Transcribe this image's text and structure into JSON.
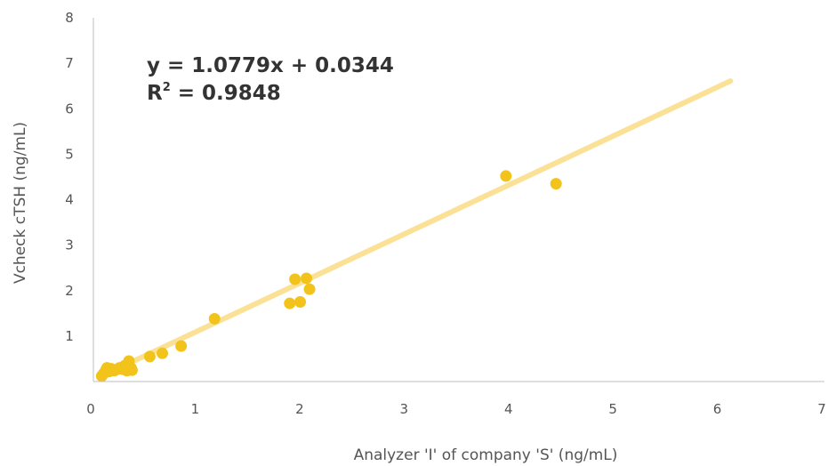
{
  "chart_data": {
    "type": "scatter",
    "xlabel": "Analyzer 'I' of company 'S' (ng/mL)",
    "ylabel": "Vcheck cTSH (ng/mL)",
    "xlim": [
      0,
      7
    ],
    "ylim": [
      0,
      8
    ],
    "x_ticks": [
      "0",
      "1",
      "2",
      "3",
      "4",
      "5",
      "6",
      "7"
    ],
    "y_ticks": [
      "1",
      "2",
      "3",
      "4",
      "5",
      "6",
      "7",
      "8"
    ],
    "grid": false,
    "colors": {
      "points": "#f2c41b",
      "trendline": "#fbe196",
      "axis": "#bfbfbf"
    },
    "series": [
      {
        "points": [
          [
            0.08,
            0.12
          ],
          [
            0.1,
            0.18
          ],
          [
            0.12,
            0.25
          ],
          [
            0.13,
            0.3
          ],
          [
            0.15,
            0.22
          ],
          [
            0.17,
            0.28
          ],
          [
            0.2,
            0.24
          ],
          [
            0.22,
            0.26
          ],
          [
            0.25,
            0.3
          ],
          [
            0.28,
            0.27
          ],
          [
            0.3,
            0.35
          ],
          [
            0.32,
            0.24
          ],
          [
            0.34,
            0.45
          ],
          [
            0.36,
            0.3
          ],
          [
            0.37,
            0.25
          ],
          [
            0.54,
            0.55
          ],
          [
            0.66,
            0.62
          ],
          [
            0.84,
            0.78
          ],
          [
            1.16,
            1.38
          ],
          [
            1.88,
            1.72
          ],
          [
            1.93,
            2.25
          ],
          [
            1.98,
            1.75
          ],
          [
            2.04,
            2.27
          ],
          [
            2.07,
            2.03
          ],
          [
            3.95,
            4.52
          ],
          [
            4.43,
            4.35
          ]
        ]
      }
    ],
    "trendline": {
      "slope": 1.0779,
      "intercept": 0.0344,
      "x_range": [
        0.08,
        6.1
      ],
      "equation_label": "y = 1.0779x + 0.0344",
      "r2_prefix": "R",
      "r2_superscript": "2",
      "r2_value": " = 0.9848"
    }
  }
}
